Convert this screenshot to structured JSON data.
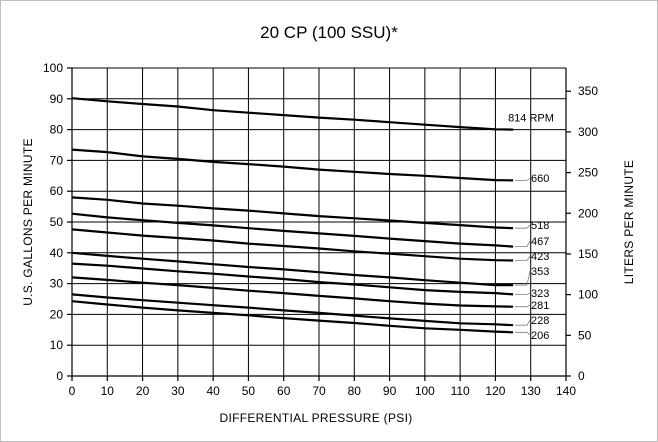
{
  "chart_data": {
    "type": "line",
    "title": "20 CP (100 SSU)*",
    "xlabel": "DIFFERENTIAL PRESSURE (PSI)",
    "ylabel": "U.S. GALLONS PER MINUTE",
    "y2label": "LITERS PER MINUTE",
    "xlim": [
      0,
      140
    ],
    "ylim": [
      0,
      100
    ],
    "y2lim": [
      0,
      378.5
    ],
    "x_ticks": [
      0,
      10,
      20,
      30,
      40,
      50,
      60,
      70,
      80,
      90,
      100,
      110,
      120,
      130,
      140
    ],
    "y_ticks": [
      0,
      10,
      20,
      30,
      40,
      50,
      60,
      70,
      80,
      90,
      100
    ],
    "y2_ticks": [
      0,
      50,
      100,
      150,
      200,
      250,
      300,
      350
    ],
    "grid": true,
    "series": [
      {
        "name": "814 RPM",
        "x": [
          0,
          10,
          20,
          30,
          40,
          50,
          60,
          70,
          80,
          90,
          100,
          110,
          120,
          125
        ],
        "values": [
          90.2,
          89.2,
          88.3,
          87.5,
          86.3,
          85.5,
          84.7,
          83.9,
          83.2,
          82.4,
          81.6,
          80.8,
          80.1,
          80.0
        ]
      },
      {
        "name": "660",
        "x": [
          0,
          10,
          20,
          30,
          40,
          50,
          60,
          70,
          80,
          90,
          100,
          110,
          120,
          125
        ],
        "values": [
          73.5,
          72.7,
          71.3,
          70.5,
          69.5,
          68.8,
          68.0,
          67.0,
          66.3,
          65.6,
          65.0,
          64.3,
          63.6,
          63.5
        ]
      },
      {
        "name": "518",
        "x": [
          0,
          10,
          20,
          30,
          40,
          50,
          60,
          70,
          80,
          90,
          100,
          110,
          120,
          125
        ],
        "values": [
          58.0,
          57.2,
          56.0,
          55.3,
          54.4,
          53.7,
          52.8,
          51.9,
          51.2,
          50.5,
          49.7,
          49.0,
          48.2,
          48.0
        ]
      },
      {
        "name": "467",
        "x": [
          0,
          10,
          20,
          30,
          40,
          50,
          60,
          70,
          80,
          90,
          100,
          110,
          120,
          125
        ],
        "values": [
          52.7,
          51.5,
          50.6,
          49.7,
          48.9,
          48.0,
          47.1,
          46.3,
          45.5,
          44.6,
          43.8,
          43.0,
          42.4,
          42.0
        ]
      },
      {
        "name": "423",
        "x": [
          0,
          10,
          20,
          30,
          40,
          50,
          60,
          70,
          80,
          90,
          100,
          110,
          120,
          125
        ],
        "values": [
          47.6,
          46.6,
          45.6,
          44.8,
          44.0,
          43.0,
          42.2,
          41.4,
          40.5,
          39.7,
          38.9,
          38.1,
          37.6,
          37.5
        ]
      },
      {
        "name": "353",
        "x": [
          0,
          10,
          20,
          30,
          40,
          50,
          60,
          70,
          80,
          90,
          100,
          110,
          120,
          125
        ],
        "values": [
          40.0,
          39.0,
          38.1,
          37.2,
          36.3,
          35.4,
          34.6,
          33.7,
          32.8,
          32.0,
          31.1,
          30.3,
          29.5,
          29.5
        ]
      },
      {
        "name": "323",
        "x": [
          0,
          10,
          20,
          30,
          40,
          50,
          60,
          70,
          80,
          90,
          100,
          110,
          120,
          125
        ],
        "values": [
          36.5,
          35.8,
          34.9,
          34.0,
          33.2,
          32.3,
          31.5,
          30.5,
          29.7,
          28.8,
          27.9,
          27.3,
          26.9,
          26.5
        ]
      },
      {
        "name": "281",
        "x": [
          0,
          10,
          20,
          30,
          40,
          50,
          60,
          70,
          80,
          90,
          100,
          110,
          120,
          125
        ],
        "values": [
          32.0,
          31.2,
          30.3,
          29.5,
          28.6,
          27.7,
          26.9,
          26.0,
          25.2,
          24.3,
          23.5,
          22.9,
          22.6,
          22.5
        ]
      },
      {
        "name": "228",
        "x": [
          0,
          10,
          20,
          30,
          40,
          50,
          60,
          70,
          80,
          90,
          100,
          110,
          120,
          125
        ],
        "values": [
          26.5,
          25.5,
          24.6,
          23.8,
          23.0,
          22.2,
          21.3,
          20.5,
          19.6,
          18.7,
          17.9,
          17.1,
          16.8,
          16.5
        ]
      },
      {
        "name": "206",
        "x": [
          0,
          10,
          20,
          30,
          40,
          50,
          60,
          70,
          80,
          90,
          100,
          110,
          120,
          125
        ],
        "values": [
          24.3,
          23.2,
          22.2,
          21.3,
          20.5,
          19.7,
          18.8,
          18.0,
          17.2,
          16.3,
          15.5,
          15.0,
          14.4,
          14.2
        ]
      }
    ]
  }
}
